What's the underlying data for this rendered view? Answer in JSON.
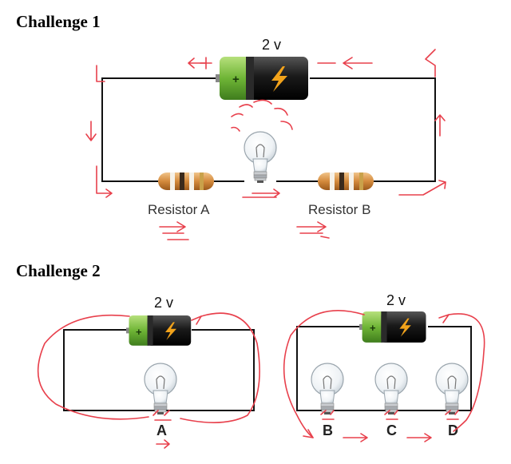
{
  "challenge1": {
    "title": "Challenge 1",
    "battery_voltage": "2 v",
    "resistor_a_label": "Resistor A",
    "resistor_b_label": "Resistor B",
    "plus_sign": "+"
  },
  "challenge2": {
    "title": "Challenge 2",
    "left_circuit": {
      "battery_voltage": "2 v",
      "plus_sign": "+",
      "bulb_label": "A"
    },
    "right_circuit": {
      "battery_voltage": "2 v",
      "plus_sign": "+",
      "bulb_labels": [
        "B",
        "C",
        "D"
      ]
    }
  },
  "colors": {
    "annotation": "#e8404c",
    "battery_green": "#7cc043",
    "battery_black": "#1a1a1a",
    "bolt": "#f2a31b"
  }
}
